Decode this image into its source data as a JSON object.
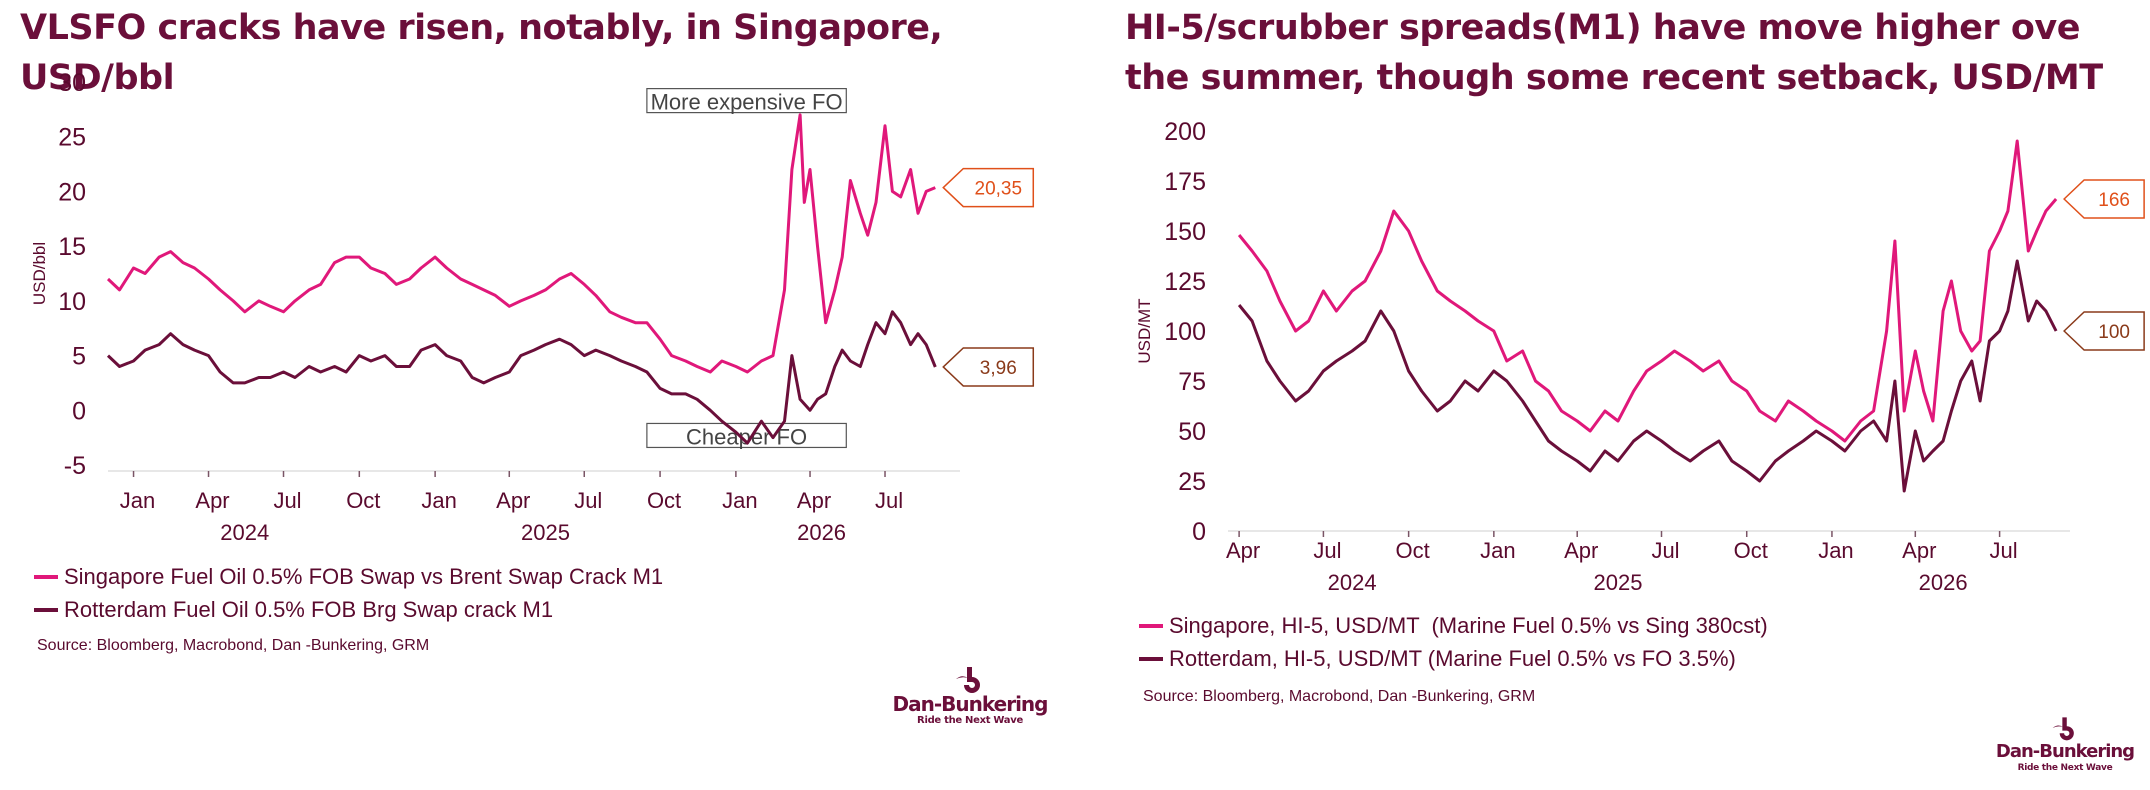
{
  "left": {
    "title": "VLSFO cracks have risen, notably, in Singapore, USD/bbl",
    "chart_data": {
      "type": "line",
      "ylabel": "USD/bbl",
      "ylim": [
        -5,
        30
      ],
      "yticks": [
        -5,
        0,
        5,
        10,
        15,
        20,
        25,
        30
      ],
      "xlim": [
        "2023-12-01",
        "2026-09-30"
      ],
      "month_ticks": [
        {
          "date": "2024-01-01",
          "label": "Jan"
        },
        {
          "date": "2024-04-01",
          "label": "Apr"
        },
        {
          "date": "2024-07-01",
          "label": "Jul"
        },
        {
          "date": "2024-10-01",
          "label": "Oct"
        },
        {
          "date": "2025-01-01",
          "label": "Jan"
        },
        {
          "date": "2025-04-01",
          "label": "Apr"
        },
        {
          "date": "2025-07-01",
          "label": "Jul"
        },
        {
          "date": "2025-10-01",
          "label": "Oct"
        },
        {
          "date": "2026-01-01",
          "label": "Jan"
        },
        {
          "date": "2026-04-01",
          "label": "Apr"
        },
        {
          "date": "2026-07-01",
          "label": "Jul"
        }
      ],
      "year_labels": [
        {
          "date": "2024-05-15",
          "label": "2024"
        },
        {
          "date": "2025-05-15",
          "label": "2025"
        },
        {
          "date": "2026-04-15",
          "label": "2026"
        }
      ],
      "annotations": [
        {
          "text": "More expensive FO",
          "date0": "2025-09-15",
          "date1": "2026-05-15",
          "y": 28.3
        },
        {
          "text": "Cheaper FO",
          "date0": "2025-09-15",
          "date1": "2026-05-15",
          "y": -2.3
        }
      ],
      "series": [
        {
          "name": "Singapore Fuel Oil 0.5% FOB Swap vs Brent Swap Crack M1",
          "color": "#e0187a",
          "last_label": "20,35",
          "x": [
            "2023-12-01",
            "2023-12-15",
            "2024-01-01",
            "2024-01-15",
            "2024-02-01",
            "2024-02-15",
            "2024-03-01",
            "2024-03-15",
            "2024-04-01",
            "2024-04-15",
            "2024-05-01",
            "2024-05-15",
            "2024-06-01",
            "2024-06-15",
            "2024-07-01",
            "2024-07-15",
            "2024-08-01",
            "2024-08-15",
            "2024-09-01",
            "2024-09-15",
            "2024-10-01",
            "2024-10-15",
            "2024-11-01",
            "2024-11-15",
            "2024-12-01",
            "2024-12-15",
            "2025-01-01",
            "2025-01-15",
            "2025-02-01",
            "2025-02-15",
            "2025-03-01",
            "2025-03-15",
            "2025-04-01",
            "2025-04-15",
            "2025-05-01",
            "2025-05-15",
            "2025-06-01",
            "2025-06-15",
            "2025-07-01",
            "2025-07-15",
            "2025-08-01",
            "2025-08-15",
            "2025-09-01",
            "2025-09-15",
            "2025-10-01",
            "2025-10-15",
            "2025-11-01",
            "2025-11-15",
            "2025-12-01",
            "2025-12-15",
            "2026-01-01",
            "2026-01-15",
            "2026-02-01",
            "2026-02-15",
            "2026-03-01",
            "2026-03-10",
            "2026-03-20",
            "2026-03-25",
            "2026-04-01",
            "2026-04-10",
            "2026-04-20",
            "2026-05-01",
            "2026-05-10",
            "2026-05-20",
            "2026-06-01",
            "2026-06-10",
            "2026-06-20",
            "2026-07-01",
            "2026-07-10",
            "2026-07-20",
            "2026-08-01",
            "2026-08-10",
            "2026-08-20",
            "2026-08-31"
          ],
          "y": [
            12,
            11,
            13,
            12.5,
            14,
            14.5,
            13.5,
            13,
            12,
            11,
            10,
            9,
            10,
            9.5,
            9,
            10,
            11,
            11.5,
            13.5,
            14,
            14,
            13,
            12.5,
            11.5,
            12,
            13,
            14,
            13,
            12,
            11.5,
            11,
            10.5,
            9.5,
            10,
            10.5,
            11,
            12,
            12.5,
            11.5,
            10.5,
            9,
            8.5,
            8,
            8,
            6.5,
            5,
            4.5,
            4,
            3.5,
            4.5,
            4,
            3.5,
            4.5,
            5,
            11,
            22,
            27,
            19,
            22,
            15,
            8,
            11,
            14,
            21,
            18,
            16,
            19,
            26,
            20,
            19.5,
            22,
            18,
            20,
            20.35
          ]
        },
        {
          "name": "Rotterdam Fuel Oil 0.5% FOB Brg Swap crack M1",
          "color": "#6b0f3a",
          "last_label": "3,96",
          "x": [
            "2023-12-01",
            "2023-12-15",
            "2024-01-01",
            "2024-01-15",
            "2024-02-01",
            "2024-02-15",
            "2024-03-01",
            "2024-03-15",
            "2024-04-01",
            "2024-04-15",
            "2024-05-01",
            "2024-05-15",
            "2024-06-01",
            "2024-06-15",
            "2024-07-01",
            "2024-07-15",
            "2024-08-01",
            "2024-08-15",
            "2024-09-01",
            "2024-09-15",
            "2024-10-01",
            "2024-10-15",
            "2024-11-01",
            "2024-11-15",
            "2024-12-01",
            "2024-12-15",
            "2025-01-01",
            "2025-01-15",
            "2025-02-01",
            "2025-02-15",
            "2025-03-01",
            "2025-03-15",
            "2025-04-01",
            "2025-04-15",
            "2025-05-01",
            "2025-05-15",
            "2025-06-01",
            "2025-06-15",
            "2025-07-01",
            "2025-07-15",
            "2025-08-01",
            "2025-08-15",
            "2025-09-01",
            "2025-09-15",
            "2025-10-01",
            "2025-10-15",
            "2025-11-01",
            "2025-11-15",
            "2025-12-01",
            "2025-12-15",
            "2026-01-01",
            "2026-01-15",
            "2026-02-01",
            "2026-02-15",
            "2026-03-01",
            "2026-03-10",
            "2026-03-20",
            "2026-04-01",
            "2026-04-10",
            "2026-04-20",
            "2026-05-01",
            "2026-05-10",
            "2026-05-20",
            "2026-06-01",
            "2026-06-10",
            "2026-06-20",
            "2026-07-01",
            "2026-07-10",
            "2026-07-20",
            "2026-08-01",
            "2026-08-10",
            "2026-08-20",
            "2026-08-31"
          ],
          "y": [
            5,
            4,
            4.5,
            5.5,
            6,
            7,
            6,
            5.5,
            5,
            3.5,
            2.5,
            2.5,
            3,
            3,
            3.5,
            3,
            4,
            3.5,
            4,
            3.5,
            5,
            4.5,
            5,
            4,
            4,
            5.5,
            6,
            5,
            4.5,
            3,
            2.5,
            3,
            3.5,
            5,
            5.5,
            6,
            6.5,
            6,
            5,
            5.5,
            5,
            4.5,
            4,
            3.5,
            2,
            1.5,
            1.5,
            1,
            0,
            -1,
            -2,
            -3,
            -1,
            -2.5,
            -1,
            5,
            1,
            0,
            1,
            1.5,
            4,
            5.5,
            4.5,
            4,
            6,
            8,
            7,
            9,
            8,
            6,
            7,
            6,
            3.96
          ]
        }
      ]
    },
    "source": "Source: Bloomberg, Macrobond, Dan -Bunkering, GRM"
  },
  "right": {
    "title": "HI-5/scrubber spreads(M1) have move higher ove the summer, though some recent setback, USD/MT",
    "chart_data": {
      "type": "line",
      "ylabel": "USD/MT",
      "ylim": [
        0,
        200
      ],
      "yticks": [
        0,
        25,
        50,
        75,
        100,
        125,
        150,
        175,
        200
      ],
      "xlim": [
        "2024-03-20",
        "2026-09-15"
      ],
      "month_ticks": [
        {
          "date": "2024-04-01",
          "label": "Apr"
        },
        {
          "date": "2024-07-01",
          "label": "Jul"
        },
        {
          "date": "2024-10-01",
          "label": "Oct"
        },
        {
          "date": "2025-01-01",
          "label": "Jan"
        },
        {
          "date": "2025-04-01",
          "label": "Apr"
        },
        {
          "date": "2025-07-01",
          "label": "Jul"
        },
        {
          "date": "2025-10-01",
          "label": "Oct"
        },
        {
          "date": "2026-01-01",
          "label": "Jan"
        },
        {
          "date": "2026-04-01",
          "label": "Apr"
        },
        {
          "date": "2026-07-01",
          "label": "Jul"
        }
      ],
      "year_labels": [
        {
          "date": "2024-08-01",
          "label": "2024"
        },
        {
          "date": "2025-05-15",
          "label": "2025"
        },
        {
          "date": "2026-05-01",
          "label": "2026"
        }
      ],
      "series": [
        {
          "name": "Singapore, HI-5, USD/MT  (Marine Fuel 0.5% vs Sing 380cst)",
          "color": "#e0187a",
          "last_label": "166",
          "x": [
            "2024-04-01",
            "2024-04-15",
            "2024-05-01",
            "2024-05-15",
            "2024-06-01",
            "2024-06-15",
            "2024-07-01",
            "2024-07-15",
            "2024-08-01",
            "2024-08-15",
            "2024-09-01",
            "2024-09-15",
            "2024-10-01",
            "2024-10-15",
            "2024-11-01",
            "2024-11-15",
            "2024-12-01",
            "2024-12-15",
            "2025-01-01",
            "2025-01-15",
            "2025-02-01",
            "2025-02-15",
            "2025-03-01",
            "2025-03-15",
            "2025-04-01",
            "2025-04-15",
            "2025-05-01",
            "2025-05-15",
            "2025-06-01",
            "2025-06-15",
            "2025-07-01",
            "2025-07-15",
            "2025-08-01",
            "2025-08-15",
            "2025-09-01",
            "2025-09-15",
            "2025-10-01",
            "2025-10-15",
            "2025-11-01",
            "2025-11-15",
            "2025-12-01",
            "2025-12-15",
            "2026-01-01",
            "2026-01-15",
            "2026-02-01",
            "2026-02-15",
            "2026-03-01",
            "2026-03-10",
            "2026-03-20",
            "2026-04-01",
            "2026-04-10",
            "2026-04-20",
            "2026-05-01",
            "2026-05-10",
            "2026-05-20",
            "2026-06-01",
            "2026-06-10",
            "2026-06-20",
            "2026-07-01",
            "2026-07-10",
            "2026-07-20",
            "2026-08-01",
            "2026-08-10",
            "2026-08-20",
            "2026-08-31"
          ],
          "y": [
            148,
            140,
            130,
            115,
            100,
            105,
            120,
            110,
            120,
            125,
            140,
            160,
            150,
            135,
            120,
            115,
            110,
            105,
            100,
            85,
            90,
            75,
            70,
            60,
            55,
            50,
            60,
            55,
            70,
            80,
            85,
            90,
            85,
            80,
            85,
            75,
            70,
            60,
            55,
            65,
            60,
            55,
            50,
            45,
            55,
            60,
            100,
            145,
            60,
            90,
            70,
            55,
            110,
            125,
            100,
            90,
            95,
            140,
            150,
            160,
            195,
            140,
            150,
            160,
            166
          ]
        },
        {
          "name": "Rotterdam, HI-5, USD/MT (Marine Fuel 0.5% vs FO 3.5%)",
          "color": "#6b0f3a",
          "last_label": "100",
          "x": [
            "2024-04-01",
            "2024-04-15",
            "2024-05-01",
            "2024-05-15",
            "2024-06-01",
            "2024-06-15",
            "2024-07-01",
            "2024-07-15",
            "2024-08-01",
            "2024-08-15",
            "2024-09-01",
            "2024-09-15",
            "2024-10-01",
            "2024-10-15",
            "2024-11-01",
            "2024-11-15",
            "2024-12-01",
            "2024-12-15",
            "2025-01-01",
            "2025-01-15",
            "2025-02-01",
            "2025-02-15",
            "2025-03-01",
            "2025-03-15",
            "2025-04-01",
            "2025-04-15",
            "2025-05-01",
            "2025-05-15",
            "2025-06-01",
            "2025-06-15",
            "2025-07-01",
            "2025-07-15",
            "2025-08-01",
            "2025-08-15",
            "2025-09-01",
            "2025-09-15",
            "2025-10-01",
            "2025-10-15",
            "2025-11-01",
            "2025-11-15",
            "2025-12-01",
            "2025-12-15",
            "2026-01-01",
            "2026-01-15",
            "2026-02-01",
            "2026-02-15",
            "2026-03-01",
            "2026-03-10",
            "2026-03-20",
            "2026-04-01",
            "2026-04-10",
            "2026-04-20",
            "2026-05-01",
            "2026-05-10",
            "2026-05-20",
            "2026-06-01",
            "2026-06-10",
            "2026-06-20",
            "2026-07-01",
            "2026-07-10",
            "2026-07-20",
            "2026-08-01",
            "2026-08-10",
            "2026-08-20",
            "2026-08-31"
          ],
          "y": [
            113,
            105,
            85,
            75,
            65,
            70,
            80,
            85,
            90,
            95,
            110,
            100,
            80,
            70,
            60,
            65,
            75,
            70,
            80,
            75,
            65,
            55,
            45,
            40,
            35,
            30,
            40,
            35,
            45,
            50,
            45,
            40,
            35,
            40,
            45,
            35,
            30,
            25,
            35,
            40,
            45,
            50,
            45,
            40,
            50,
            55,
            45,
            75,
            20,
            50,
            35,
            40,
            45,
            60,
            75,
            85,
            65,
            95,
            100,
            110,
            135,
            105,
            115,
            110,
            100
          ]
        }
      ]
    },
    "source": "Source: Bloomberg, Macrobond, Dan -Bunkering, GRM"
  },
  "logo": {
    "name": "Dan-Bunkering",
    "tagline": "Ride the Next Wave",
    "color": "#6b0f3a"
  }
}
